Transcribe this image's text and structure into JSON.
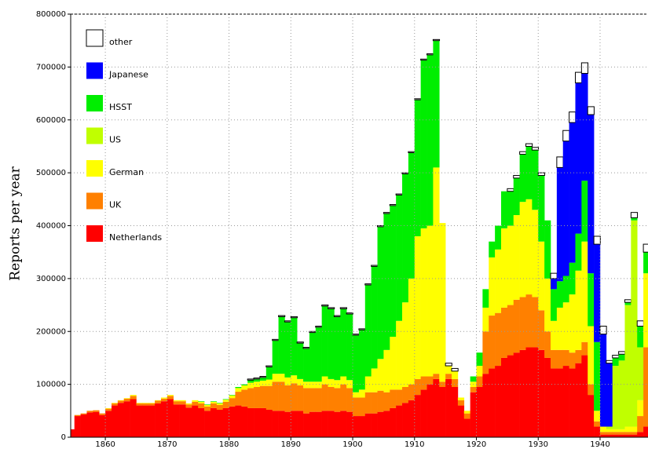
{
  "chart_data": {
    "type": "stacked_bar",
    "y_label": "Reports per year",
    "x": [
      1854,
      1855,
      1856,
      1857,
      1858,
      1859,
      1860,
      1861,
      1862,
      1863,
      1864,
      1865,
      1866,
      1867,
      1868,
      1869,
      1870,
      1871,
      1872,
      1873,
      1874,
      1875,
      1876,
      1877,
      1878,
      1879,
      1880,
      1881,
      1882,
      1883,
      1884,
      1885,
      1886,
      1887,
      1888,
      1889,
      1890,
      1891,
      1892,
      1893,
      1894,
      1895,
      1896,
      1897,
      1898,
      1899,
      1900,
      1901,
      1902,
      1903,
      1904,
      1905,
      1906,
      1907,
      1908,
      1909,
      1910,
      1911,
      1912,
      1913,
      1914,
      1915,
      1916,
      1917,
      1918,
      1919,
      1920,
      1921,
      1922,
      1923,
      1924,
      1925,
      1926,
      1927,
      1928,
      1929,
      1930,
      1931,
      1932,
      1933,
      1934,
      1935,
      1936,
      1937,
      1938,
      1939,
      1940,
      1941,
      1942,
      1943,
      1944,
      1945,
      1946,
      1947
    ],
    "series": [
      {
        "name": "Netherlands",
        "color": "#ff0000",
        "values": [
          15000,
          40000,
          43000,
          47000,
          48000,
          42000,
          50000,
          60000,
          65000,
          68000,
          72000,
          60000,
          60000,
          60000,
          64000,
          68000,
          72000,
          62000,
          62000,
          56000,
          60000,
          55000,
          50000,
          55000,
          52000,
          55000,
          58000,
          60000,
          58000,
          55000,
          55000,
          55000,
          52000,
          50000,
          50000,
          48000,
          50000,
          50000,
          45000,
          48000,
          48000,
          50000,
          50000,
          48000,
          50000,
          48000,
          40000,
          40000,
          45000,
          45000,
          48000,
          50000,
          55000,
          60000,
          65000,
          70000,
          80000,
          90000,
          100000,
          110000,
          95000,
          110000,
          95000,
          60000,
          35000,
          85000,
          95000,
          120000,
          130000,
          135000,
          150000,
          155000,
          160000,
          165000,
          170000,
          170000,
          165000,
          150000,
          130000,
          130000,
          135000,
          130000,
          140000,
          155000,
          80000,
          20000,
          5000,
          5000,
          5000,
          5000,
          5000,
          5000,
          10000,
          20000
        ]
      },
      {
        "name": "UK",
        "color": "#ff8000",
        "values": [
          0,
          2000,
          2000,
          3000,
          3000,
          3000,
          4000,
          4000,
          4000,
          5000,
          6000,
          4000,
          4000,
          4000,
          5000,
          5000,
          6000,
          6000,
          6000,
          6000,
          7000,
          9000,
          8000,
          9000,
          9000,
          12000,
          16000,
          26000,
          32000,
          38000,
          40000,
          42000,
          45000,
          55000,
          55000,
          50000,
          52000,
          48000,
          48000,
          45000,
          45000,
          50000,
          45000,
          45000,
          50000,
          45000,
          35000,
          35000,
          40000,
          40000,
          40000,
          35000,
          35000,
          30000,
          30000,
          30000,
          30000,
          25000,
          15000,
          10000,
          10000,
          10000,
          15000,
          10000,
          10000,
          10000,
          20000,
          80000,
          100000,
          100000,
          95000,
          95000,
          100000,
          100000,
          100000,
          95000,
          75000,
          50000,
          35000,
          35000,
          30000,
          30000,
          25000,
          25000,
          20000,
          10000,
          5000,
          5000,
          5000,
          5000,
          5000,
          5000,
          30000,
          150000
        ]
      },
      {
        "name": "German",
        "color": "#ffff00",
        "values": [
          0,
          0,
          0,
          0,
          0,
          0,
          1000,
          1000,
          1000,
          1000,
          2000,
          1000,
          1000,
          1000,
          1000,
          2000,
          2000,
          2000,
          2000,
          2000,
          3000,
          3000,
          3000,
          3000,
          3000,
          4000,
          5000,
          7000,
          8000,
          10000,
          10000,
          10000,
          12000,
          15000,
          15000,
          15000,
          15000,
          12000,
          12000,
          12000,
          12000,
          15000,
          15000,
          15000,
          15000,
          15000,
          10000,
          15000,
          30000,
          45000,
          60000,
          80000,
          100000,
          130000,
          160000,
          200000,
          270000,
          280000,
          285000,
          390000,
          300000,
          15000,
          15000,
          5000,
          5000,
          10000,
          20000,
          45000,
          110000,
          120000,
          150000,
          150000,
          160000,
          180000,
          180000,
          165000,
          130000,
          100000,
          55000,
          80000,
          90000,
          110000,
          150000,
          190000,
          110000,
          20000,
          10000,
          5000,
          5000,
          5000,
          10000,
          10000,
          30000,
          140000
        ]
      },
      {
        "name": "US",
        "color": "#c0ff00",
        "values": [
          0,
          0,
          0,
          0,
          0,
          0,
          0,
          0,
          0,
          0,
          0,
          0,
          0,
          0,
          0,
          0,
          0,
          0,
          0,
          0,
          0,
          0,
          0,
          0,
          0,
          0,
          0,
          0,
          0,
          0,
          0,
          0,
          0,
          0,
          0,
          0,
          0,
          0,
          0,
          0,
          0,
          0,
          0,
          0,
          0,
          0,
          0,
          0,
          0,
          0,
          0,
          0,
          0,
          0,
          0,
          0,
          0,
          0,
          0,
          0,
          0,
          0,
          0,
          0,
          0,
          0,
          0,
          0,
          0,
          0,
          0,
          0,
          0,
          0,
          0,
          0,
          0,
          0,
          0,
          0,
          0,
          0,
          0,
          0,
          0,
          0,
          0,
          5000,
          120000,
          130000,
          230000,
          390000,
          100000,
          0
        ]
      },
      {
        "name": "HSST",
        "color": "#00ee00",
        "values": [
          0,
          0,
          0,
          0,
          0,
          0,
          0,
          0,
          0,
          0,
          0,
          0,
          0,
          0,
          0,
          0,
          0,
          0,
          0,
          0,
          0,
          1000,
          1000,
          1000,
          1000,
          1000,
          1000,
          2000,
          2000,
          5000,
          5000,
          6000,
          24000,
          63000,
          108000,
          105000,
          109000,
          68000,
          63000,
          93000,
          103000,
          133000,
          133000,
          120000,
          128000,
          125000,
          108000,
          113000,
          173000,
          193000,
          250000,
          258000,
          248000,
          238000,
          243000,
          238000,
          258000,
          318000,
          323000,
          240000,
          0,
          0,
          0,
          0,
          0,
          10000,
          25000,
          35000,
          30000,
          45000,
          70000,
          65000,
          70000,
          90000,
          100000,
          113000,
          125000,
          110000,
          60000,
          50000,
          50000,
          60000,
          70000,
          115000,
          100000,
          130000,
          0,
          0,
          15000,
          12000,
          5000,
          5000,
          40000,
          40000
        ]
      },
      {
        "name": "Japanese",
        "color": "#0000ff",
        "values": [
          0,
          0,
          0,
          0,
          0,
          0,
          0,
          0,
          0,
          0,
          0,
          0,
          0,
          0,
          0,
          0,
          0,
          0,
          0,
          0,
          0,
          0,
          0,
          0,
          0,
          0,
          0,
          0,
          0,
          0,
          0,
          0,
          0,
          0,
          0,
          0,
          0,
          0,
          0,
          0,
          0,
          0,
          0,
          0,
          0,
          0,
          0,
          0,
          0,
          0,
          0,
          0,
          0,
          0,
          0,
          0,
          0,
          0,
          0,
          0,
          0,
          0,
          0,
          0,
          0,
          0,
          0,
          0,
          0,
          0,
          0,
          0,
          0,
          0,
          0,
          0,
          0,
          0,
          20000,
          215000,
          255000,
          265000,
          285000,
          203000,
          300000,
          185000,
          175000,
          120000,
          0,
          0,
          0,
          0,
          0,
          0
        ]
      },
      {
        "name": "other",
        "color": "#ffffff",
        "values": [
          0,
          0,
          0,
          0,
          0,
          0,
          0,
          0,
          0,
          0,
          0,
          0,
          0,
          0,
          0,
          0,
          0,
          0,
          0,
          0,
          0,
          0,
          0,
          0,
          0,
          0,
          0,
          0,
          0,
          2000,
          2000,
          2000,
          2000,
          2000,
          2000,
          2000,
          2000,
          2000,
          2000,
          2000,
          2000,
          2000,
          2000,
          2000,
          2000,
          2000,
          2000,
          2000,
          2000,
          2000,
          2000,
          2000,
          2000,
          2000,
          2000,
          2000,
          2000,
          2000,
          2000,
          2000,
          0,
          5000,
          5000,
          0,
          0,
          0,
          0,
          0,
          0,
          0,
          0,
          5000,
          5000,
          5000,
          5000,
          5000,
          5000,
          0,
          10000,
          20000,
          20000,
          20000,
          20000,
          20000,
          15000,
          15000,
          15000,
          5000,
          5000,
          5000,
          5000,
          10000,
          10000,
          15000
        ]
      }
    ],
    "xlim": [
      1854.4,
      1947.75
    ],
    "xticks": [
      1860,
      1870,
      1880,
      1890,
      1900,
      1910,
      1920,
      1930,
      1940
    ],
    "ylim": [
      0,
      800000
    ],
    "yticks": [
      0,
      100000,
      200000,
      300000,
      400000,
      500000,
      600000,
      700000,
      800000
    ],
    "grid": true,
    "legend": "top-left"
  }
}
